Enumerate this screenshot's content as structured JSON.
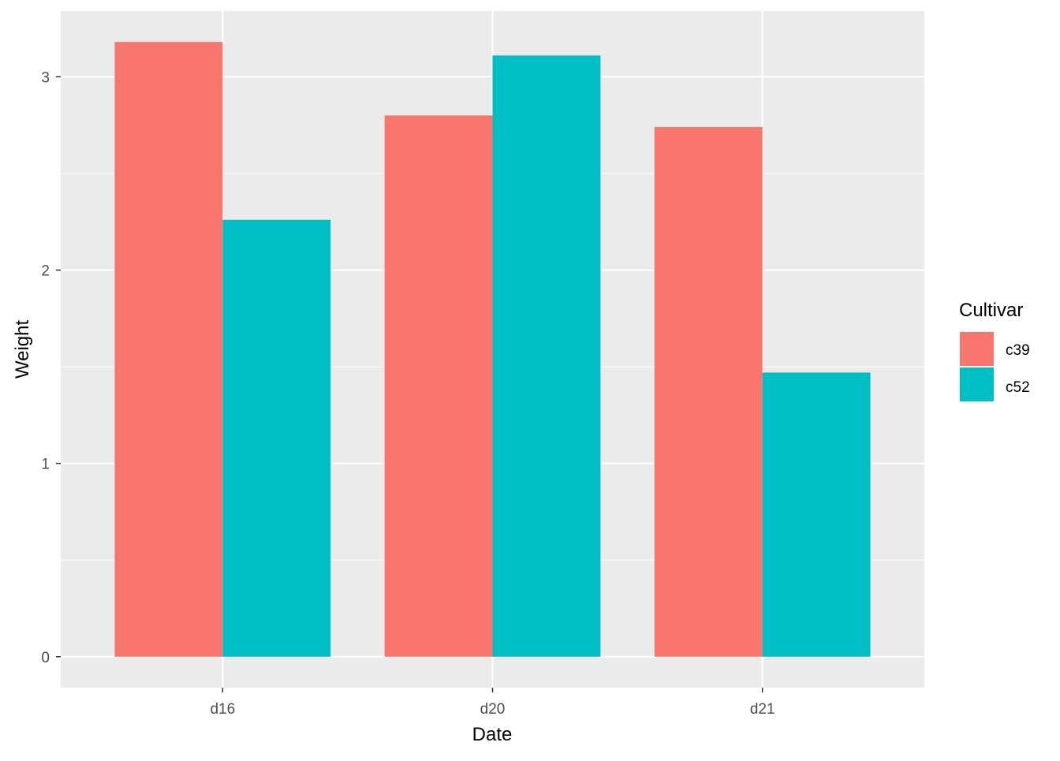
{
  "chart_data": {
    "type": "bar",
    "categories": [
      "d16",
      "d20",
      "d21"
    ],
    "series": [
      {
        "name": "c39",
        "color": "#F8766D",
        "values": [
          3.18,
          2.8,
          2.74
        ]
      },
      {
        "name": "c52",
        "color": "#00BFC4",
        "values": [
          2.26,
          3.11,
          1.47
        ]
      }
    ],
    "xlabel": "Date",
    "ylabel": "Weight",
    "ylim": [
      -0.16,
      3.34
    ],
    "yticks": [
      0,
      1,
      2,
      3
    ],
    "ytick_labels": [
      "0",
      "1",
      "2",
      "3"
    ],
    "grid": true,
    "legend": {
      "title": "Cultivar",
      "position": "right"
    },
    "panel_background": "#EBEBEB",
    "grid_color": "#FFFFFF"
  }
}
